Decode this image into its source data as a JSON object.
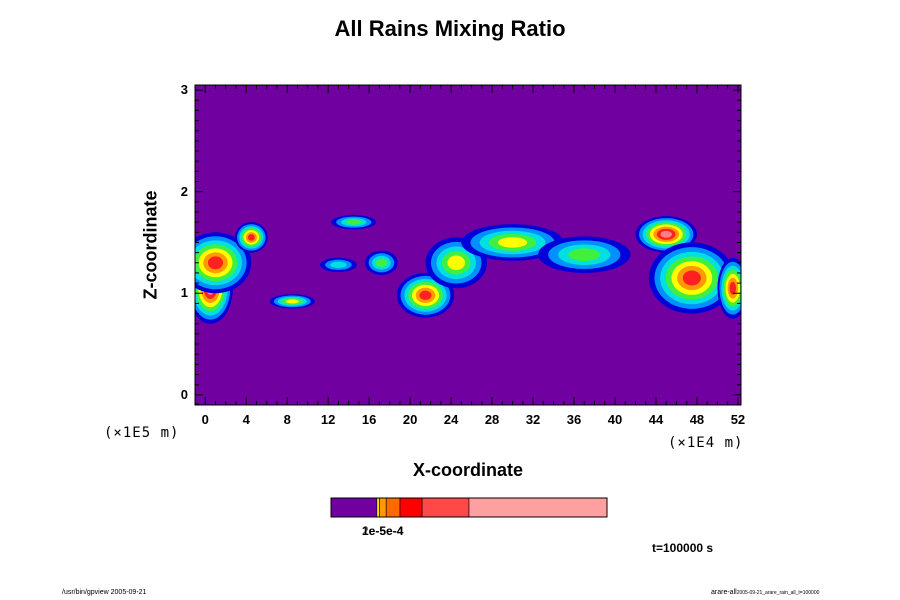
{
  "chart_data": {
    "type": "heatmap",
    "title": "All Rains Mixing Ratio",
    "xlabel": "X-coordinate",
    "ylabel": "Z-coordinate",
    "x_ticks": [
      "0",
      "4",
      "8",
      "12",
      "16",
      "20",
      "24",
      "28",
      "32",
      "36",
      "40",
      "44",
      "48",
      "52"
    ],
    "x_multiplier": "(×1E4 m)",
    "y_ticks": [
      "0",
      "1",
      "2",
      "3"
    ],
    "y_multiplier": "(×1E5 m)",
    "xlim": [
      -1,
      52.3
    ],
    "ylim": [
      -0.1,
      3.05
    ],
    "time_label": "t=100000 s",
    "colorbar": {
      "colors": [
        "#7000a0",
        "#ffe000",
        "#ff9a00",
        "#ff6a00",
        "#ff0000",
        "#ff4848",
        "#ffa0a0"
      ],
      "bounds": [
        0,
        0.166,
        0.176,
        0.2,
        0.25,
        0.33,
        0.5,
        1
      ],
      "tick_label_text": "1e-5e-4",
      "tick_label_text_2": "2e-5e-4"
    },
    "rain_regions": [
      {
        "x": 0.5,
        "z": 1.05,
        "w": 2.2,
        "h": 0.35,
        "level": 5
      },
      {
        "x": 1.0,
        "z": 1.3,
        "w": 3.5,
        "h": 0.3,
        "level": 4
      },
      {
        "x": 4.5,
        "z": 1.55,
        "w": 1.6,
        "h": 0.15,
        "level": 4
      },
      {
        "x": 8.5,
        "z": 0.92,
        "w": 2.2,
        "h": 0.07,
        "level": 2
      },
      {
        "x": 14.5,
        "z": 1.7,
        "w": 2.2,
        "h": 0.07,
        "level": 1
      },
      {
        "x": 13.0,
        "z": 1.28,
        "w": 1.8,
        "h": 0.07,
        "level": 0
      },
      {
        "x": 17.2,
        "z": 1.3,
        "w": 1.6,
        "h": 0.12,
        "level": 1
      },
      {
        "x": 21.5,
        "z": 0.98,
        "w": 2.8,
        "h": 0.22,
        "level": 4
      },
      {
        "x": 24.5,
        "z": 1.3,
        "w": 3.0,
        "h": 0.25,
        "level": 2
      },
      {
        "x": 30.0,
        "z": 1.5,
        "w": 5.0,
        "h": 0.18,
        "level": 2
      },
      {
        "x": 37.0,
        "z": 1.38,
        "w": 4.5,
        "h": 0.18,
        "level": 1
      },
      {
        "x": 45.0,
        "z": 1.58,
        "w": 3.0,
        "h": 0.18,
        "level": 5
      },
      {
        "x": 47.5,
        "z": 1.15,
        "w": 4.2,
        "h": 0.35,
        "level": 4
      },
      {
        "x": 51.5,
        "z": 1.05,
        "w": 1.5,
        "h": 0.3,
        "level": 4
      }
    ]
  },
  "footer": {
    "left": "/usr/bin/gpview 2005-09-21",
    "right_main": "arare-all",
    "right_small": "2005-09-21_arare_rain_all_t=100000"
  }
}
